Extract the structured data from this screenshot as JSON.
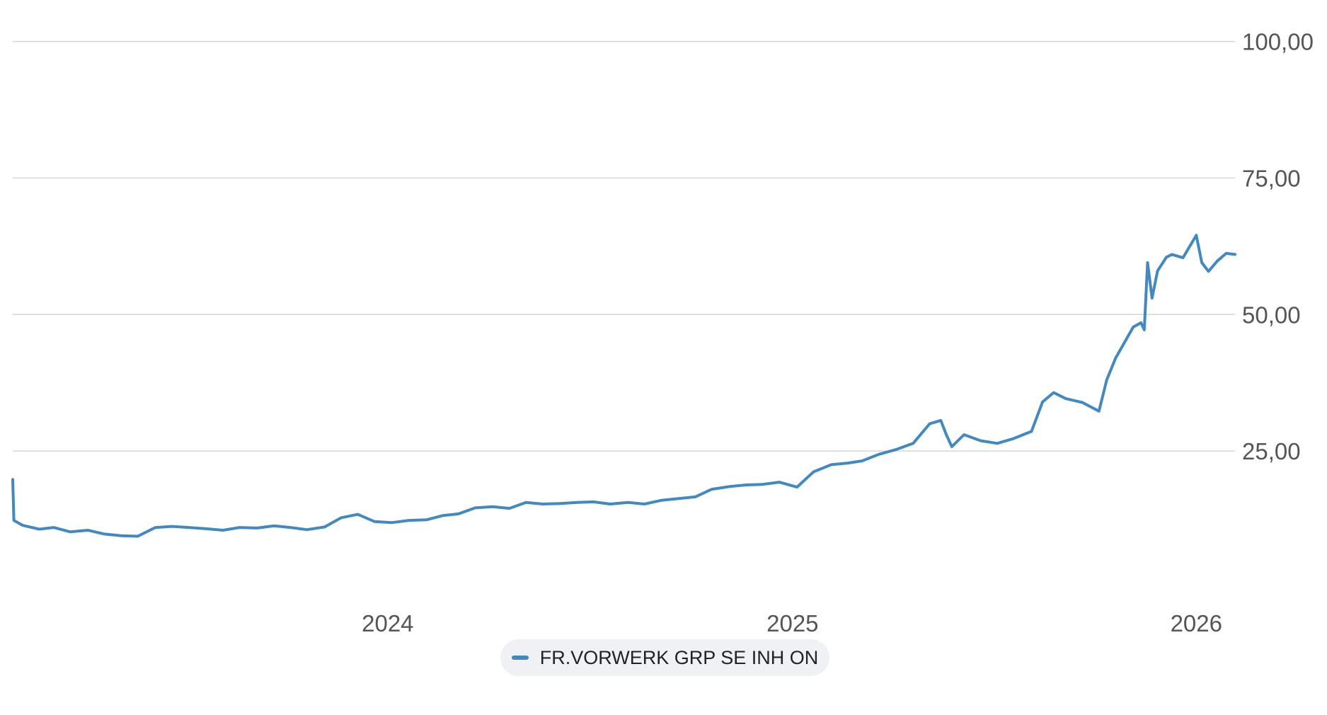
{
  "chart_data": {
    "type": "line",
    "title": "",
    "xlabel": "",
    "ylabel": "",
    "x_ticks": [
      "2024",
      "2025",
      "2026"
    ],
    "y_ticks": [
      "25,00",
      "50,00",
      "75,00",
      "100,00"
    ],
    "ylim": [
      0,
      105
    ],
    "xlim": [
      "2023-01-27",
      "2026-02-05"
    ],
    "grid": true,
    "legend_position": "bottom-center",
    "series": [
      {
        "name": "FR.VORWERK GRP SE INH ON",
        "color": "#4089c2",
        "points": [
          [
            "2023-01-27",
            19.8
          ],
          [
            "2023-01-28",
            12.3
          ],
          [
            "2023-02-05",
            11.4
          ],
          [
            "2023-02-20",
            10.7
          ],
          [
            "2023-03-05",
            11.0
          ],
          [
            "2023-03-20",
            10.2
          ],
          [
            "2023-04-05",
            10.5
          ],
          [
            "2023-04-20",
            9.8
          ],
          [
            "2023-05-05",
            9.5
          ],
          [
            "2023-05-20",
            9.4
          ],
          [
            "2023-06-05",
            11.0
          ],
          [
            "2023-06-20",
            11.2
          ],
          [
            "2023-07-05",
            11.0
          ],
          [
            "2023-07-20",
            10.8
          ],
          [
            "2023-08-05",
            10.5
          ],
          [
            "2023-08-20",
            11.0
          ],
          [
            "2023-09-05",
            10.9
          ],
          [
            "2023-09-20",
            11.3
          ],
          [
            "2023-10-05",
            11.0
          ],
          [
            "2023-10-20",
            10.6
          ],
          [
            "2023-11-05",
            11.1
          ],
          [
            "2023-11-20",
            12.8
          ],
          [
            "2023-12-05",
            13.4
          ],
          [
            "2023-12-20",
            12.1
          ],
          [
            "2024-01-05",
            11.9
          ],
          [
            "2024-01-20",
            12.3
          ],
          [
            "2024-02-05",
            12.4
          ],
          [
            "2024-02-20",
            13.2
          ],
          [
            "2024-03-05",
            13.5
          ],
          [
            "2024-03-20",
            14.6
          ],
          [
            "2024-04-05",
            14.8
          ],
          [
            "2024-04-20",
            14.5
          ],
          [
            "2024-05-05",
            15.6
          ],
          [
            "2024-05-20",
            15.3
          ],
          [
            "2024-06-05",
            15.4
          ],
          [
            "2024-06-20",
            15.6
          ],
          [
            "2024-07-05",
            15.7
          ],
          [
            "2024-07-20",
            15.3
          ],
          [
            "2024-08-05",
            15.6
          ],
          [
            "2024-08-20",
            15.3
          ],
          [
            "2024-09-05",
            16.0
          ],
          [
            "2024-09-20",
            16.3
          ],
          [
            "2024-10-05",
            16.6
          ],
          [
            "2024-10-20",
            18.0
          ],
          [
            "2024-11-05",
            18.5
          ],
          [
            "2024-11-20",
            18.8
          ],
          [
            "2024-12-05",
            18.9
          ],
          [
            "2024-12-20",
            19.3
          ],
          [
            "2025-01-05",
            18.4
          ],
          [
            "2025-01-20",
            21.2
          ],
          [
            "2025-02-05",
            22.5
          ],
          [
            "2025-02-20",
            22.8
          ],
          [
            "2025-03-05",
            23.2
          ],
          [
            "2025-03-20",
            24.4
          ],
          [
            "2025-04-05",
            25.3
          ],
          [
            "2025-04-20",
            26.4
          ],
          [
            "2025-05-05",
            30.0
          ],
          [
            "2025-05-15",
            30.6
          ],
          [
            "2025-05-20",
            28.0
          ],
          [
            "2025-05-25",
            25.8
          ],
          [
            "2025-06-05",
            28.0
          ],
          [
            "2025-06-20",
            26.9
          ],
          [
            "2025-07-05",
            26.4
          ],
          [
            "2025-07-20",
            27.3
          ],
          [
            "2025-08-05",
            28.6
          ],
          [
            "2025-08-15",
            34.0
          ],
          [
            "2025-08-25",
            35.7
          ],
          [
            "2025-09-05",
            34.6
          ],
          [
            "2025-09-20",
            33.9
          ],
          [
            "2025-10-05",
            32.3
          ],
          [
            "2025-10-12",
            38.0
          ],
          [
            "2025-10-20",
            42.0
          ],
          [
            "2025-11-05",
            47.7
          ],
          [
            "2025-11-12",
            48.5
          ],
          [
            "2025-11-15",
            47.2
          ],
          [
            "2025-11-18",
            59.5
          ],
          [
            "2025-11-22",
            53.0
          ],
          [
            "2025-11-27",
            58.0
          ],
          [
            "2025-12-05",
            60.5
          ],
          [
            "2025-12-10",
            61.0
          ],
          [
            "2025-12-20",
            60.4
          ],
          [
            "2026-01-01",
            64.5
          ],
          [
            "2026-01-06",
            59.5
          ],
          [
            "2026-01-12",
            57.9
          ],
          [
            "2026-01-20",
            59.8
          ],
          [
            "2026-01-28",
            61.2
          ],
          [
            "2026-02-05",
            61.0
          ]
        ]
      }
    ]
  }
}
